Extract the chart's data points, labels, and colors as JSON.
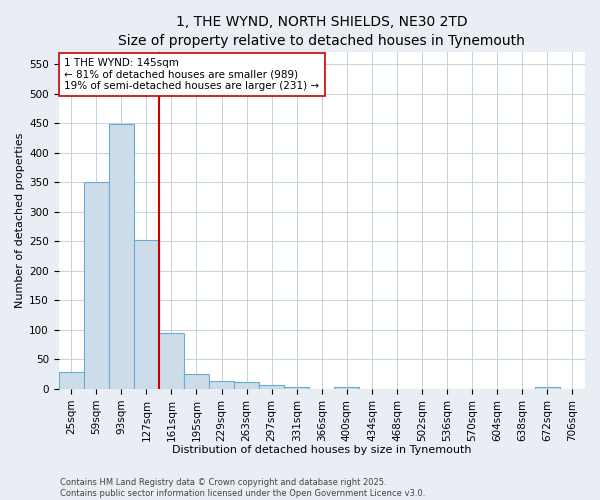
{
  "title": "1, THE WYND, NORTH SHIELDS, NE30 2TD",
  "subtitle": "Size of property relative to detached houses in Tynemouth",
  "xlabel": "Distribution of detached houses by size in Tynemouth",
  "ylabel": "Number of detached properties",
  "categories": [
    "25sqm",
    "59sqm",
    "93sqm",
    "127sqm",
    "161sqm",
    "195sqm",
    "229sqm",
    "263sqm",
    "297sqm",
    "331sqm",
    "366sqm",
    "400sqm",
    "434sqm",
    "468sqm",
    "502sqm",
    "536sqm",
    "570sqm",
    "604sqm",
    "638sqm",
    "672sqm",
    "706sqm"
  ],
  "values": [
    28,
    350,
    448,
    252,
    95,
    25,
    14,
    11,
    6,
    4,
    0,
    4,
    0,
    0,
    0,
    0,
    0,
    0,
    0,
    4,
    0
  ],
  "bar_color": "#ccdce8",
  "bar_edge_color": "#6aaad4",
  "vline_x": 3.5,
  "vline_color": "#cc0000",
  "annotation_text": "1 THE WYND: 145sqm\n← 81% of detached houses are smaller (989)\n19% of semi-detached houses are larger (231) →",
  "annotation_box_color": "#ffffff",
  "annotation_box_edge": "#cc0000",
  "ylim": [
    0,
    570
  ],
  "yticks": [
    0,
    50,
    100,
    150,
    200,
    250,
    300,
    350,
    400,
    450,
    500,
    550
  ],
  "footer1": "Contains HM Land Registry data © Crown copyright and database right 2025.",
  "footer2": "Contains public sector information licensed under the Open Government Licence v3.0.",
  "bg_color": "#e8eef4",
  "plot_bg_color": "#ffffff",
  "grid_color": "#b8ccd8",
  "title_fontsize": 10,
  "subtitle_fontsize": 9,
  "axis_label_fontsize": 8,
  "tick_fontsize": 7.5,
  "annotation_fontsize": 7.5,
  "footer_fontsize": 6
}
